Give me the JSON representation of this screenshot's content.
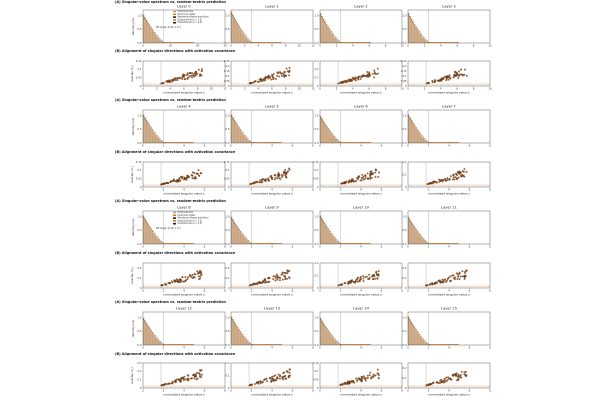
{
  "figure": {
    "block_titles": {
      "spectrum": "(A) Singular-value spectrum vs. random-matrix prediction",
      "alignment": "(B) Alignment of singular directions with activation covariance"
    },
    "spectrum_ylabel": "density  p(s)",
    "alignment_ylabel": "overlap  O_i",
    "alignment_xlabel": "normalized singular value  s",
    "legend_entries": [
      "Empirical bulk",
      "Empirical outlier",
      "Marchenko-Pastur prediction",
      "Empirical tail (s > 2.5)",
      "Predicted tail (s > 2.5)"
    ],
    "inset_note": "MP range: [0.29, 1.71]",
    "layer_prefix": "Layer"
  },
  "colors": {
    "bulk": "#c8a27c",
    "outlier": "#e07b22",
    "mp_curve": "#222222",
    "scatter": "#8b4513",
    "scatter_edge": "#3a2410",
    "threshold": "#888888",
    "baseline": "#f4a460"
  },
  "chart_data": {
    "type": "grid-of-panels",
    "rows": [
      {
        "kind": "spectrum",
        "title_key": "spectrum",
        "layers": [
          0,
          1,
          2,
          3
        ],
        "xlim": [
          [
            0,
            30
          ],
          [
            0,
            12
          ],
          [
            0,
            10
          ],
          [
            0,
            10
          ]
        ],
        "xticks": [
          [
            0,
            10,
            20,
            30
          ],
          [
            0,
            2,
            4,
            6,
            8,
            10,
            12
          ],
          [
            0,
            2,
            4,
            6,
            8,
            10
          ],
          [
            0,
            2,
            4,
            6,
            8,
            10
          ]
        ],
        "ylim": [
          0,
          1.2
        ],
        "yticks": [
          0.0,
          0.5,
          1.0
        ],
        "peak": [
          1.05,
          1.15,
          1.1,
          1.1
        ]
      },
      {
        "kind": "alignment",
        "title_key": "alignment",
        "xlim": [
          [
            0,
            12
          ],
          [
            0,
            12
          ],
          [
            0,
            10
          ],
          [
            0,
            10
          ]
        ],
        "xticks": [
          [
            0,
            2,
            4,
            6,
            8,
            10,
            12
          ],
          [
            0,
            2,
            4,
            6,
            8,
            10,
            12
          ],
          [
            0,
            2,
            4,
            6,
            8,
            10
          ],
          [
            0,
            2,
            4,
            6,
            8,
            10
          ]
        ],
        "ylim": [
          [
            0,
            0.15
          ],
          [
            0,
            0.25
          ],
          [
            0,
            0.3
          ],
          [
            0,
            0.25
          ]
        ],
        "yticks": [
          [
            0,
            0.05,
            0.1,
            0.15
          ],
          [
            0,
            0.05,
            0.1,
            0.15,
            0.2,
            0.25
          ],
          [
            0,
            0.1,
            0.2,
            0.3
          ],
          [
            0,
            0.05,
            0.1,
            0.15,
            0.2,
            0.25
          ]
        ]
      },
      {
        "kind": "spectrum",
        "title_key": "spectrum",
        "layers": [
          4,
          5,
          6,
          7
        ],
        "xlim": [
          [
            0,
            8
          ],
          [
            0,
            8
          ],
          [
            0,
            8
          ],
          [
            0,
            8
          ]
        ],
        "xticks": [
          [
            0,
            2,
            4,
            6,
            8
          ],
          [
            0,
            2,
            4,
            6,
            8
          ],
          [
            0,
            2,
            4,
            6,
            8
          ],
          [
            0,
            2,
            4,
            6,
            8
          ]
        ],
        "ylim": [
          0,
          1.2
        ],
        "yticks": [
          0.0,
          0.5,
          1.0
        ],
        "peak": [
          1.05,
          1.05,
          1.0,
          1.05
        ]
      },
      {
        "kind": "alignment",
        "title_key": "alignment",
        "xlim": [
          [
            0,
            8
          ],
          [
            0,
            8
          ],
          [
            0,
            8
          ],
          [
            0,
            8
          ]
        ],
        "xticks": [
          [
            0,
            2,
            4,
            6,
            8
          ],
          [
            0,
            2,
            4,
            6,
            8
          ],
          [
            0,
            2,
            4,
            6,
            8
          ],
          [
            0,
            2,
            4,
            6,
            8
          ]
        ],
        "ylim": [
          [
            0,
            0.15
          ],
          [
            0,
            0.15
          ],
          [
            0,
            0.15
          ],
          [
            0,
            0.2
          ]
        ],
        "yticks": [
          [
            0,
            0.05,
            0.1,
            0.15
          ],
          [
            0,
            0.05,
            0.1,
            0.15
          ],
          [
            0,
            0.05,
            0.1,
            0.15
          ],
          [
            0,
            0.1,
            0.2
          ]
        ]
      },
      {
        "kind": "spectrum",
        "title_key": "spectrum",
        "layers": [
          8,
          9,
          10,
          11
        ],
        "xlim": [
          [
            0,
            8
          ],
          [
            0,
            8
          ],
          [
            0,
            8
          ],
          [
            0,
            8
          ]
        ],
        "xticks": [
          [
            0,
            2,
            4,
            6,
            8
          ],
          [
            0,
            2,
            4,
            6,
            8
          ],
          [
            0,
            2,
            4,
            6,
            8
          ],
          [
            0,
            2,
            4,
            6,
            8
          ]
        ],
        "ylim": [
          0,
          1.2
        ],
        "yticks": [
          0.0,
          0.5,
          1.0
        ],
        "peak": [
          1.05,
          1.0,
          1.05,
          1.0
        ]
      },
      {
        "kind": "alignment",
        "title_key": "alignment",
        "xlim": [
          [
            0,
            8
          ],
          [
            0,
            8
          ],
          [
            0,
            8
          ],
          [
            0,
            8
          ]
        ],
        "xticks": [
          [
            0,
            2,
            4,
            6,
            8
          ],
          [
            0,
            2,
            4,
            6,
            8
          ],
          [
            0,
            2,
            4,
            6,
            8
          ],
          [
            0,
            2,
            4,
            6,
            8
          ]
        ],
        "ylim": [
          [
            0,
            0.25
          ],
          [
            0,
            0.25
          ],
          [
            0,
            0.2
          ],
          [
            0,
            0.25
          ]
        ],
        "yticks": [
          [
            0,
            0.1,
            0.2
          ],
          [
            0,
            0.1,
            0.2
          ],
          [
            0,
            0.1,
            0.2
          ],
          [
            0,
            0.1,
            0.2
          ]
        ]
      },
      {
        "kind": "spectrum",
        "title_key": "spectrum",
        "layers": [
          12,
          13,
          14,
          15
        ],
        "xlim": [
          [
            0,
            8
          ],
          [
            0,
            8
          ],
          [
            0,
            8
          ],
          [
            0,
            8
          ]
        ],
        "xticks": [
          [
            0,
            2,
            4,
            6,
            8
          ],
          [
            0,
            2,
            4,
            6,
            8
          ],
          [
            0,
            2,
            4,
            6,
            8
          ],
          [
            0,
            2,
            4,
            6,
            8
          ]
        ],
        "ylim": [
          0,
          1.2
        ],
        "yticks": [
          0.0,
          0.5,
          1.0
        ],
        "peak": [
          1.0,
          1.05,
          1.0,
          1.05
        ]
      },
      {
        "kind": "alignment",
        "title_key": "alignment",
        "xlim": [
          [
            0,
            8
          ],
          [
            0,
            8
          ],
          [
            0,
            8
          ],
          [
            0,
            8
          ]
        ],
        "xticks": [
          [
            0,
            2,
            4,
            6,
            8
          ],
          [
            0,
            2,
            4,
            6,
            8
          ],
          [
            0,
            2,
            4,
            6,
            8
          ],
          [
            0,
            2,
            4,
            6,
            8
          ]
        ],
        "ylim": [
          [
            0,
            0.3
          ],
          [
            0,
            0.2
          ],
          [
            0,
            0.15
          ],
          [
            0,
            0.25
          ]
        ],
        "yticks": [
          [
            0,
            0.1,
            0.2,
            0.3
          ],
          [
            0,
            0.1,
            0.2
          ],
          [
            0,
            0.05,
            0.1,
            0.15
          ],
          [
            0,
            0.1,
            0.2
          ]
        ]
      }
    ]
  }
}
